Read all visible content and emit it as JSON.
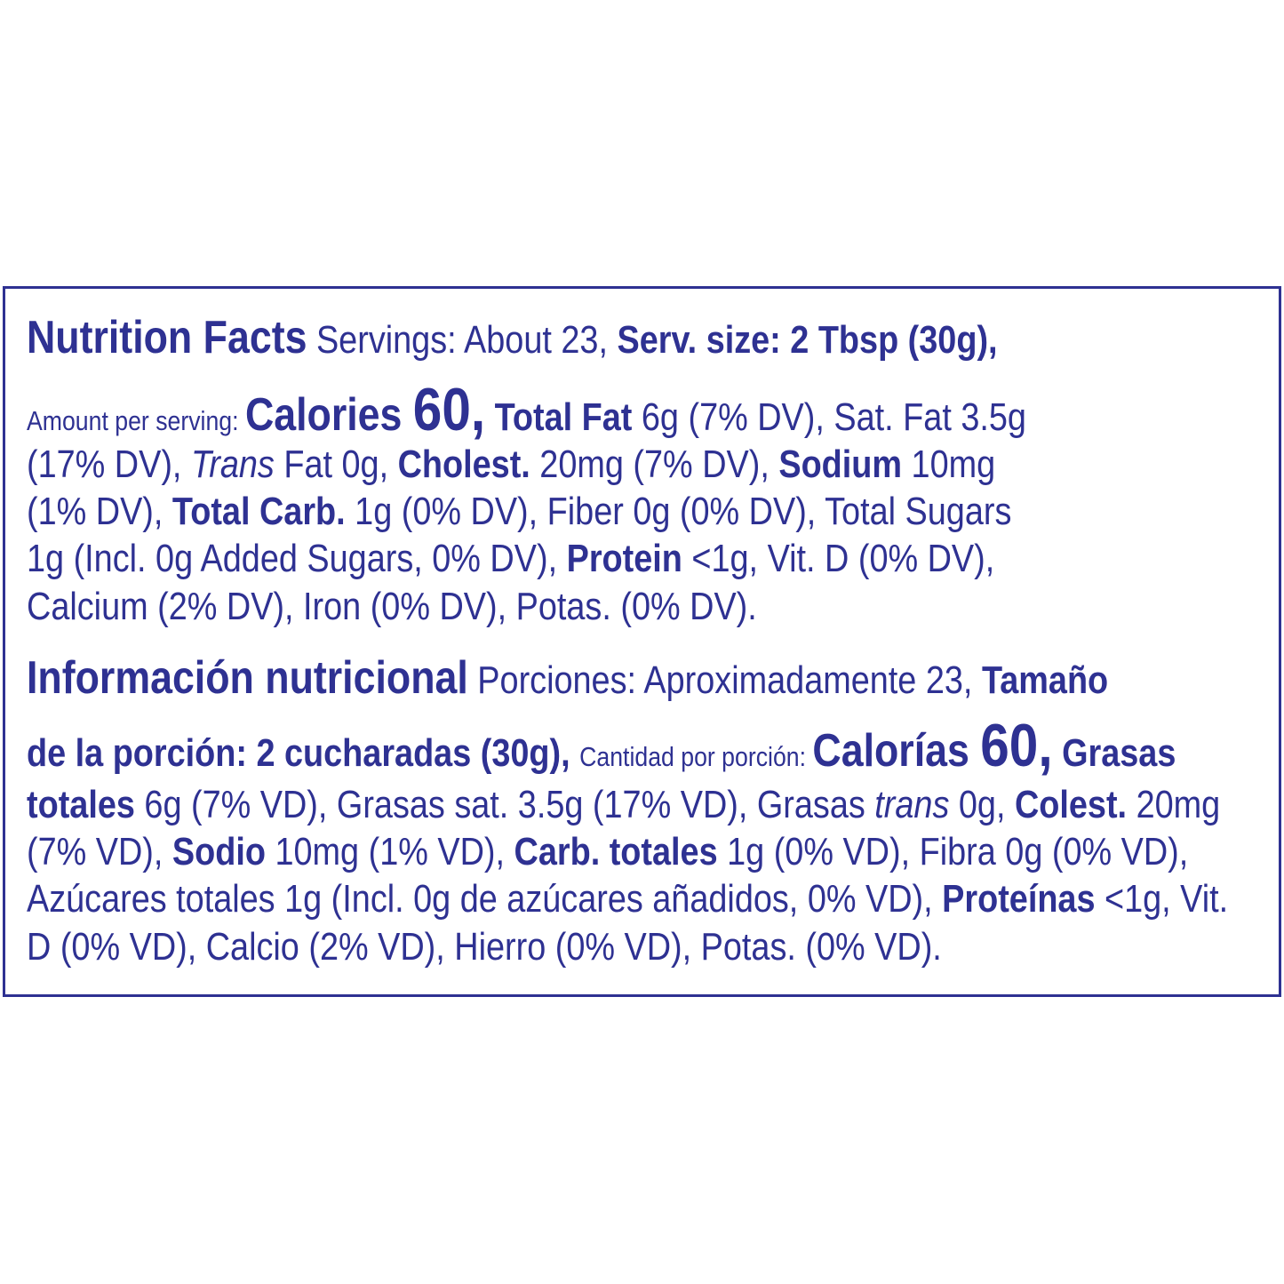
{
  "color": "#2e3192",
  "english": {
    "lines": [
      [
        {
          "text": "Nutrition Facts",
          "style": "heading"
        },
        {
          "text": " Servings: About 23, ",
          "style": "regular"
        },
        {
          "text": "Serv. size: 2 Tbsp (30g),",
          "style": "bold"
        }
      ],
      [
        {
          "text": "Amount per serving: ",
          "style": "small"
        },
        {
          "text": "Calories ",
          "style": "large"
        },
        {
          "text": "60,",
          "style": "big"
        },
        {
          "text": " Total Fat",
          "style": "bold"
        },
        {
          "text": " 6g (7% DV), Sat. Fat 3.5g",
          "style": "regular"
        }
      ],
      [
        {
          "text": "(17% DV), ",
          "style": "regular"
        },
        {
          "text": "Trans",
          "style": "italic"
        },
        {
          "text": " Fat 0g, ",
          "style": "regular"
        },
        {
          "text": "Cholest.",
          "style": "bold"
        },
        {
          "text": " 20mg (7% DV), ",
          "style": "regular"
        },
        {
          "text": "Sodium",
          "style": "bold"
        },
        {
          "text": " 10mg",
          "style": "regular"
        }
      ],
      [
        {
          "text": "(1% DV), ",
          "style": "regular"
        },
        {
          "text": "Total Carb.",
          "style": "bold"
        },
        {
          "text": " 1g (0% DV), Fiber 0g (0% DV), Total Sugars",
          "style": "regular"
        }
      ],
      [
        {
          "text": "1g (Incl. 0g Added Sugars, 0% DV), ",
          "style": "regular"
        },
        {
          "text": "Protein",
          "style": "bold"
        },
        {
          "text": " <1g, Vit. D (0% DV),",
          "style": "regular"
        }
      ],
      [
        {
          "text": "Calcium (2% DV), Iron (0% DV), Potas. (0% DV).",
          "style": "regular"
        }
      ]
    ]
  },
  "spanish": {
    "lines": [
      [
        {
          "text": "Información nutricional",
          "style": "heading"
        },
        {
          "text": " Porciones: Aproximadamente 23, ",
          "style": "regular"
        },
        {
          "text": "Tamaño",
          "style": "bold"
        }
      ],
      [
        {
          "text": "de la porción: 2 cucharadas (30g), ",
          "style": "bold"
        },
        {
          "text": "Cantidad por porción: ",
          "style": "small"
        },
        {
          "text": "Calorías ",
          "style": "large"
        },
        {
          "text": "60,",
          "style": "big"
        },
        {
          "text": " Grasas",
          "style": "bold"
        }
      ],
      [
        {
          "text": "totales",
          "style": "bold"
        },
        {
          "text": " 6g (7% VD), Grasas sat. 3.5g (17% VD), Grasas ",
          "style": "regular"
        },
        {
          "text": "trans",
          "style": "italic"
        },
        {
          "text": " 0g, ",
          "style": "regular"
        },
        {
          "text": "Colest.",
          "style": "bold"
        },
        {
          "text": " 20mg",
          "style": "regular"
        }
      ],
      [
        {
          "text": "(7% VD), ",
          "style": "regular"
        },
        {
          "text": "Sodio",
          "style": "bold"
        },
        {
          "text": " 10mg (1% VD), ",
          "style": "regular"
        },
        {
          "text": "Carb. totales",
          "style": "bold"
        },
        {
          "text": " 1g (0% VD), Fibra 0g (0% VD),",
          "style": "regular"
        }
      ],
      [
        {
          "text": "Azúcares totales 1g (Incl. 0g de azúcares añadidos, 0% VD), ",
          "style": "regular"
        },
        {
          "text": "Proteínas",
          "style": "bold"
        },
        {
          "text": " <1g, Vit.",
          "style": "regular"
        }
      ],
      [
        {
          "text": "D (0% VD), Calcio (2% VD), Hierro (0% VD), Potas. (0% VD).",
          "style": "regular"
        }
      ]
    ]
  }
}
